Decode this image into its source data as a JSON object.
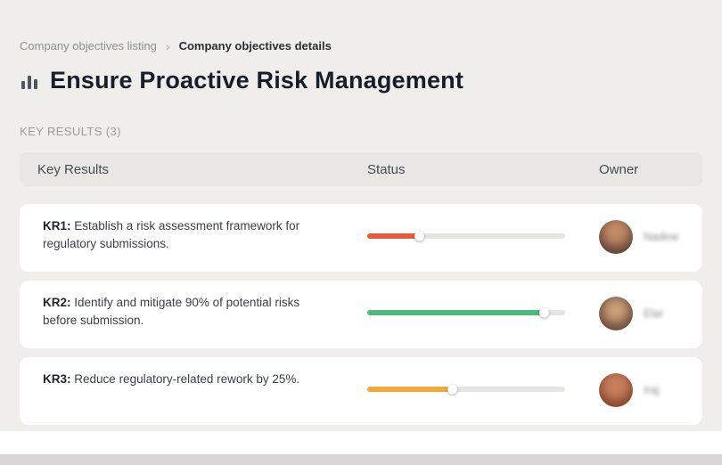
{
  "breadcrumb": {
    "item1": "Company objectives listing",
    "separator": "›",
    "item2": "Company objectives details"
  },
  "header": {
    "icon": "bar-chart-icon",
    "title": "Ensure Proactive Risk Management"
  },
  "section_label": "KEY RESULTS (3)",
  "table": {
    "columns": {
      "key_results": "Key Results",
      "status": "Status",
      "owner": "Owner"
    },
    "rows": [
      {
        "kr_label": "KR1:",
        "kr_text": "Establish a risk assessment framework for regulatory submissions.",
        "progress": 26,
        "progress_color": "#E85B3A",
        "owner_name": "Nadine"
      },
      {
        "kr_label": "KR2:",
        "kr_text": "Identify and mitigate 90% of potential risks before submission.",
        "progress": 89,
        "progress_color": "#4DB97C",
        "owner_name": "Elar"
      },
      {
        "kr_label": "KR3:",
        "kr_text": "Reduce regulatory-related rework by 25%.",
        "progress": 43,
        "progress_color": "#F2A93B",
        "owner_name": "Iraj"
      }
    ]
  }
}
